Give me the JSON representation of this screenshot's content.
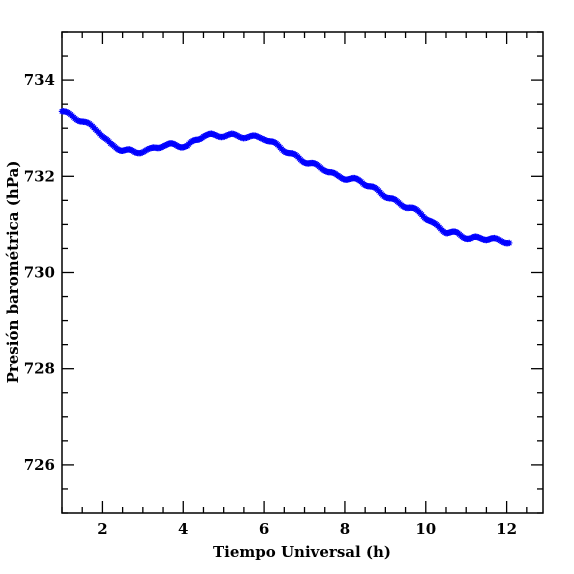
{
  "chart_data": {
    "type": "scatter",
    "xlabel": "Tiempo Universal (h)",
    "ylabel": "Presión barométrica (hPa)",
    "xlim": [
      1,
      12.9
    ],
    "ylim": [
      725,
      735
    ],
    "xticks": [
      2,
      4,
      6,
      8,
      10,
      12
    ],
    "yticks": [
      726,
      728,
      730,
      732,
      734
    ],
    "marker_color": "#0000ff",
    "series": [
      {
        "x": [
          1.0,
          1.5,
          1.9,
          2.2,
          2.5,
          2.8,
          3.2,
          3.5,
          3.8,
          4.1,
          4.3,
          4.5,
          4.8,
          5.2,
          5.6,
          6.0,
          6.3,
          6.6,
          6.9,
          7.2,
          7.5,
          7.8,
          8.1,
          8.4,
          8.7,
          9.0,
          9.3,
          9.6,
          9.9,
          10.2,
          10.5,
          10.8,
          11.1,
          11.4,
          11.7,
          12.1
        ],
        "y": [
          733.35,
          733.15,
          732.95,
          732.65,
          732.55,
          732.5,
          732.55,
          732.65,
          732.65,
          732.62,
          732.75,
          732.85,
          732.85,
          732.85,
          732.82,
          732.8,
          732.65,
          732.5,
          732.35,
          732.25,
          732.15,
          732.0,
          731.95,
          731.9,
          731.75,
          731.6,
          731.45,
          731.35,
          731.22,
          731.0,
          730.85,
          730.8,
          730.7,
          730.72,
          730.68,
          730.63
        ]
      }
    ]
  }
}
